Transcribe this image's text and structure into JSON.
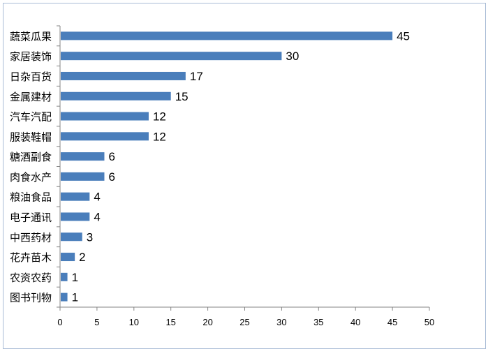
{
  "chart_data": {
    "type": "bar",
    "orientation": "horizontal",
    "title": "",
    "xlabel": "",
    "ylabel": "",
    "categories": [
      "蔬菜瓜果",
      "家居装饰",
      "日杂百货",
      "金属建材",
      "汽车汽配",
      "服装鞋帽",
      "糖酒副食",
      "肉食水产",
      "粮油食品",
      "电子通讯",
      "中西药材",
      "花卉苗木",
      "农资农药",
      "图书刊物"
    ],
    "values": [
      45,
      30,
      17,
      15,
      12,
      12,
      6,
      6,
      4,
      4,
      3,
      2,
      1,
      1
    ],
    "xlim": [
      0,
      50
    ],
    "x_ticks": [
      0,
      5,
      10,
      15,
      20,
      25,
      30,
      35,
      40,
      45,
      50
    ],
    "bar_color": "#4a7ebb",
    "grid": false,
    "legend": "none",
    "data_labels": true
  }
}
